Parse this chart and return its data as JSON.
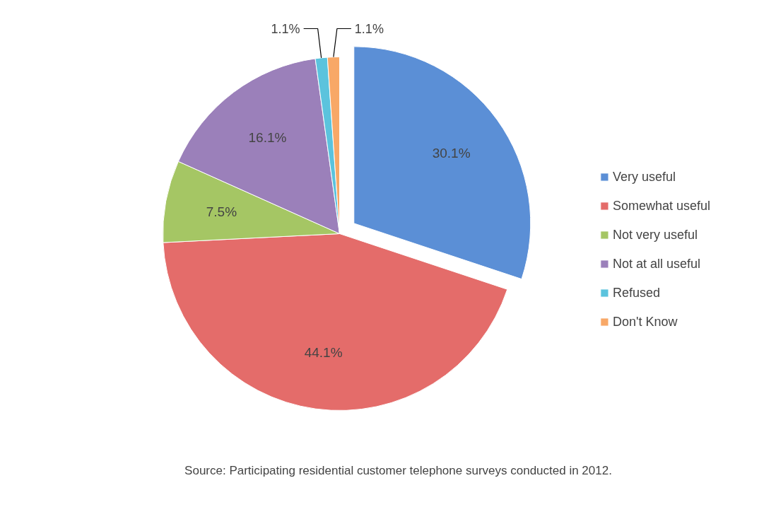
{
  "chart_data": {
    "type": "pie",
    "categories": [
      "Very useful",
      "Somewhat useful",
      "Not very useful",
      "Not at all useful",
      "Refused",
      "Don't Know"
    ],
    "values": [
      30.1,
      44.1,
      7.5,
      16.1,
      1.1,
      1.1
    ],
    "colors": [
      "#5b8fd6",
      "#e46c6a",
      "#a5c664",
      "#9b80ba",
      "#5bc3dd",
      "#f8a867"
    ],
    "value_labels": [
      "30.1%",
      "44.1%",
      "7.5%",
      "16.1%",
      "1.1%",
      "1.1%"
    ],
    "legend": "right",
    "annotations": [
      "Source: Participating residential customer telephone surveys conducted in 2012."
    ]
  }
}
